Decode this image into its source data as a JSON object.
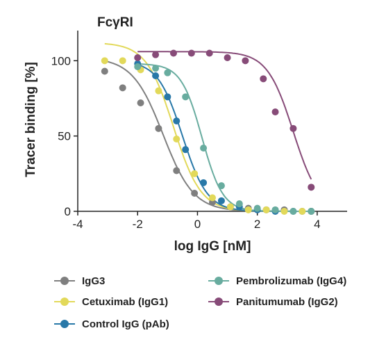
{
  "chart_data": {
    "type": "scatter",
    "title": "FcγRI",
    "xlabel": "log IgG [nM]",
    "ylabel": "Tracer binding [%]",
    "xlim": [
      -4,
      5
    ],
    "ylim": [
      0,
      120
    ],
    "xticks": [
      -4,
      -2,
      0,
      2,
      4
    ],
    "yticks": [
      0,
      50,
      100
    ],
    "xtick_labels": [
      "-4",
      "-2",
      "0",
      "2",
      "4"
    ],
    "ytick_labels": [
      "0",
      "50",
      "100"
    ],
    "series": [
      {
        "name": "IgG3",
        "color": "#7f7f7f",
        "x": [
          -3.1,
          -2.5,
          -1.9,
          -1.3,
          -0.7,
          -0.1,
          0.5,
          1.1,
          1.7,
          2.3,
          2.9,
          3.5,
          3.8
        ],
        "y": [
          93,
          82,
          72,
          55,
          27,
          12,
          6,
          3,
          2,
          1,
          1,
          0,
          0
        ],
        "fit": {
          "top": 102,
          "bottom": 0,
          "logIC50": -1.15,
          "hill": 0.85,
          "x_start": -3.1,
          "x_end": 3.8
        }
      },
      {
        "name": "Cetuximab (IgG1)",
        "color": "#e2d95a",
        "x": [
          -3.1,
          -2.5,
          -1.9,
          -1.3,
          -0.7,
          -0.1,
          0.5,
          1.1,
          1.7,
          2.3,
          2.9,
          3.5,
          3.8
        ],
        "y": [
          100,
          100,
          94,
          80,
          48,
          25,
          9,
          3,
          1,
          1,
          0,
          0,
          0
        ],
        "fit": {
          "top": 112,
          "bottom": 0,
          "logIC50": -0.8,
          "hill": 0.95,
          "x_start": -3.1,
          "x_end": 3.8
        }
      },
      {
        "name": "Control IgG (pAb)",
        "color": "#2878a8",
        "x": [
          -2.0,
          -1.4,
          -1.0,
          -0.7,
          -0.4,
          0.2,
          0.8,
          1.4,
          2.0,
          2.6,
          3.2,
          3.8
        ],
        "y": [
          98,
          90,
          76,
          60,
          41,
          19,
          7,
          3,
          1,
          0,
          0,
          0
        ],
        "fit": {
          "top": 100,
          "bottom": 0,
          "logIC50": -0.5,
          "hill": 1.05,
          "x_start": -2.0,
          "x_end": 3.8
        }
      },
      {
        "name": "Pembrolizumab (IgG4)",
        "color": "#68ac9f",
        "x": [
          -2.0,
          -1.4,
          -1.0,
          -0.4,
          0.2,
          0.8,
          1.4,
          2.0,
          2.6,
          3.2,
          3.8
        ],
        "y": [
          96,
          95,
          92,
          76,
          42,
          17,
          5,
          2,
          1,
          0,
          0
        ],
        "fit": {
          "top": 98,
          "bottom": 0,
          "logIC50": 0.15,
          "hill": 1.25,
          "x_start": -2.0,
          "x_end": 3.8
        }
      },
      {
        "name": "Panitumumab (IgG2)",
        "color": "#874b78",
        "x": [
          -2.0,
          -1.4,
          -0.8,
          -0.2,
          0.4,
          1.0,
          1.6,
          2.2,
          2.6,
          3.2,
          3.8
        ],
        "y": [
          102,
          104,
          105,
          105,
          105,
          102,
          100,
          88,
          66,
          55,
          16
        ],
        "fit": {
          "top": 106,
          "bottom": 0,
          "logIC50": 3.2,
          "hill": 1.0,
          "x_start": -2.0,
          "x_end": 3.8
        }
      }
    ],
    "legend_position": "bottom",
    "grid": false
  },
  "legend": {
    "items": [
      {
        "label": "IgG3",
        "color": "#7f7f7f"
      },
      {
        "label": "Cetuximab (IgG1)",
        "color": "#e2d95a"
      },
      {
        "label": "Control IgG (pAb)",
        "color": "#2878a8"
      },
      {
        "label": "Pembrolizumab (IgG4)",
        "color": "#68ac9f"
      },
      {
        "label": "Panitumumab (IgG2)",
        "color": "#874b78"
      }
    ]
  }
}
